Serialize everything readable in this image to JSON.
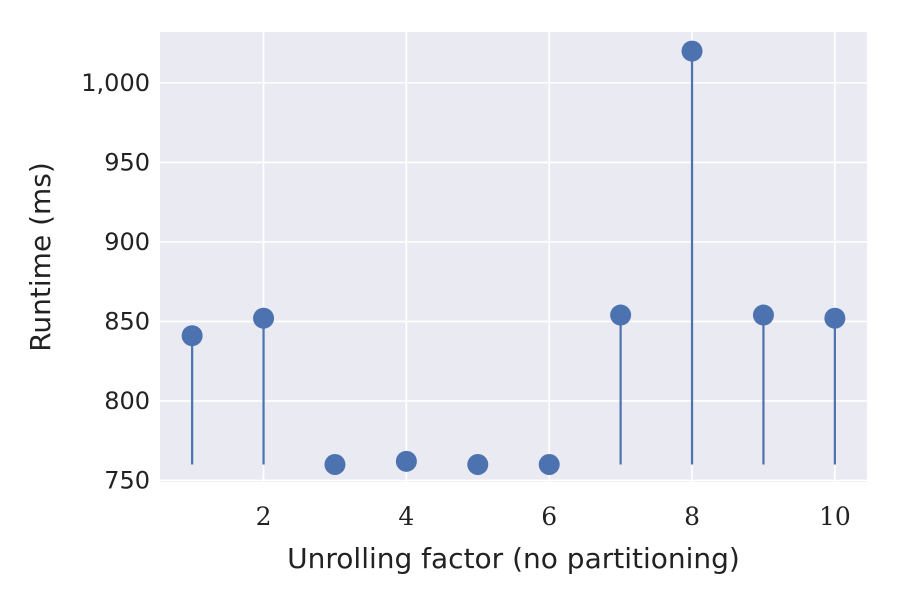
{
  "chart_data": {
    "type": "scatter",
    "style": "stem",
    "xlabel": "Unrolling factor (no partitioning)",
    "ylabel": "Runtime (ms)",
    "x": [
      1,
      2,
      3,
      4,
      5,
      6,
      7,
      8,
      9,
      10
    ],
    "y": [
      841,
      852,
      760,
      762,
      760,
      760,
      854,
      1020,
      854,
      852
    ],
    "stem_baseline": 760,
    "xticks": [
      2,
      4,
      6,
      8,
      10
    ],
    "xtick_labels": [
      "2",
      "4",
      "6",
      "8",
      "10"
    ],
    "yticks": [
      750,
      800,
      850,
      900,
      950,
      1000
    ],
    "ytick_labels": [
      "750",
      "800",
      "850",
      "900",
      "950",
      "1,000"
    ],
    "xlim": [
      0.55,
      10.45
    ],
    "ylim": [
      749,
      1032
    ],
    "grid": true,
    "legend": "none",
    "colors": {
      "background": "#EAEAF2",
      "grid": "#FFFFFF",
      "marker": "#4C72B0",
      "stem": "#4C72B0"
    }
  }
}
